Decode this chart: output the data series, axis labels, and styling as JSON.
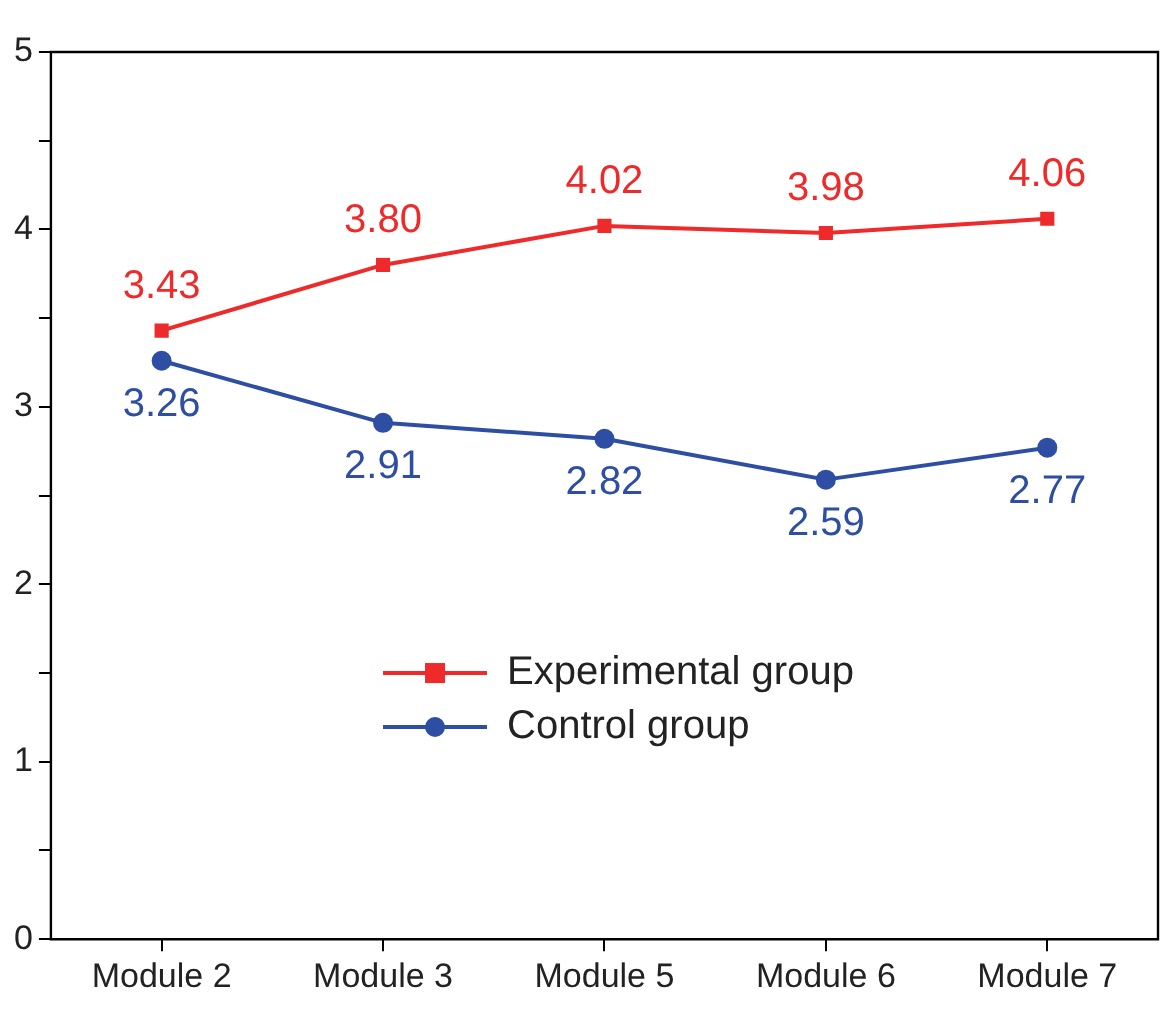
{
  "chart_data": {
    "type": "line",
    "categories": [
      "Module 2",
      "Module 3",
      "Module 5",
      "Module 6",
      "Module 7"
    ],
    "series": [
      {
        "name": "Experimental group",
        "color": "#ee2a2a",
        "marker": "square",
        "values": [
          3.43,
          3.8,
          4.02,
          3.98,
          4.06
        ],
        "value_labels": [
          "3.43",
          "3.80",
          "4.02",
          "3.98",
          "4.06"
        ]
      },
      {
        "name": "Control group",
        "color": "#2d4ea2",
        "marker": "circle",
        "values": [
          3.26,
          2.91,
          2.82,
          2.59,
          2.77
        ],
        "value_labels": [
          "3.26",
          "2.91",
          "2.82",
          "2.59",
          "2.77"
        ]
      }
    ],
    "ylim": [
      0,
      5
    ],
    "yticks": [
      0,
      {
        "value": 0.5,
        "label": null
      },
      1,
      {
        "value": 1.5,
        "label": null
      },
      2,
      {
        "value": 2.5,
        "label": null
      },
      3,
      {
        "value": 3.5,
        "label": null
      },
      4,
      {
        "value": 4.5,
        "label": null
      },
      5
    ],
    "grid": false,
    "legend": "center",
    "line_style": "solid"
  }
}
